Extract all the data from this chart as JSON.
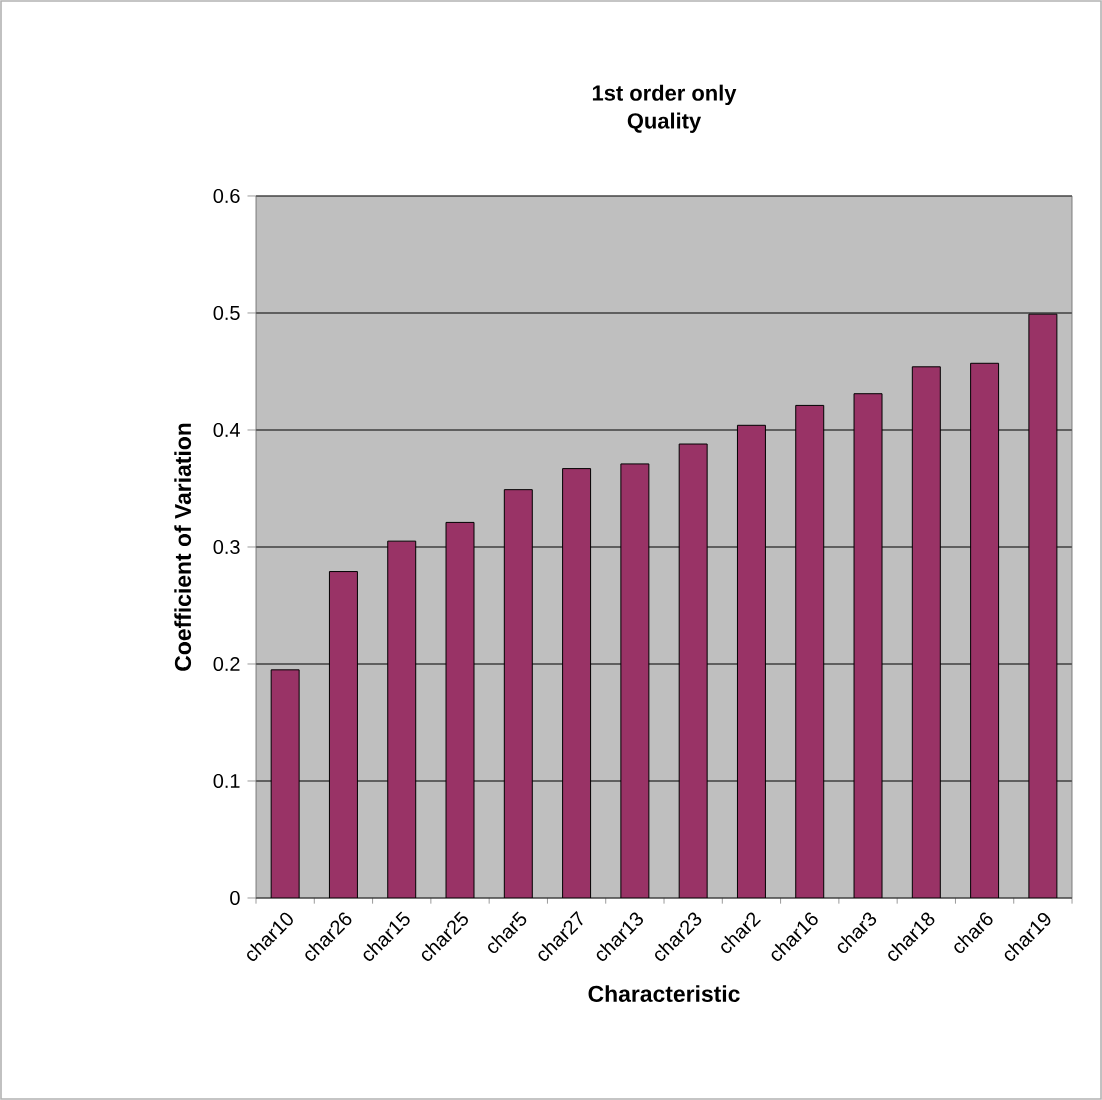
{
  "chart_data": {
    "type": "bar",
    "title": "1st order only",
    "subtitle": "Quality",
    "xlabel": "Characteristic",
    "ylabel": "Coefficient of Variation",
    "categories": [
      "char10",
      "char26",
      "char15",
      "char25",
      "char5",
      "char27",
      "char13",
      "char23",
      "char2",
      "char16",
      "char3",
      "char18",
      "char6",
      "char19"
    ],
    "values": [
      0.195,
      0.279,
      0.305,
      0.321,
      0.349,
      0.367,
      0.371,
      0.388,
      0.404,
      0.421,
      0.431,
      0.454,
      0.457,
      0.499
    ],
    "color": "#993366",
    "ylim": [
      0,
      0.6
    ],
    "yticks": [
      0,
      0.1,
      0.2,
      0.3,
      0.4,
      0.5,
      0.6
    ],
    "grid": "y"
  }
}
